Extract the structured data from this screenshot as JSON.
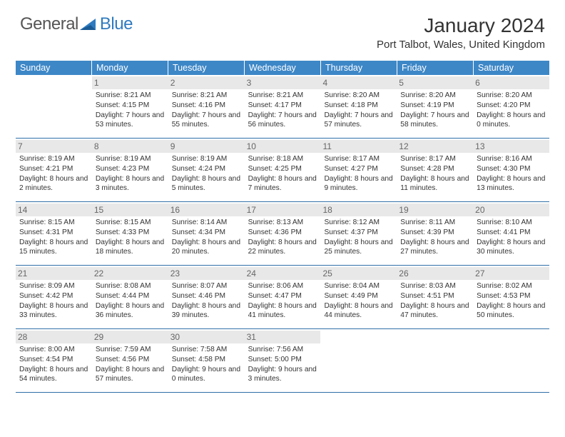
{
  "logo": {
    "text1": "General",
    "text2": "Blue",
    "color1": "#555555",
    "color2": "#2f7bbf"
  },
  "title": "January 2024",
  "location": "Port Talbot, Wales, United Kingdom",
  "header_bg": "#3d87c7",
  "row_border": "#2f6fa8",
  "daynum_bg": "#e8e8e8",
  "weekdays": [
    "Sunday",
    "Monday",
    "Tuesday",
    "Wednesday",
    "Thursday",
    "Friday",
    "Saturday"
  ],
  "weeks": [
    [
      null,
      {
        "n": "1",
        "sr": "8:21 AM",
        "ss": "4:15 PM",
        "dl": "7 hours and 53 minutes."
      },
      {
        "n": "2",
        "sr": "8:21 AM",
        "ss": "4:16 PM",
        "dl": "7 hours and 55 minutes."
      },
      {
        "n": "3",
        "sr": "8:21 AM",
        "ss": "4:17 PM",
        "dl": "7 hours and 56 minutes."
      },
      {
        "n": "4",
        "sr": "8:20 AM",
        "ss": "4:18 PM",
        "dl": "7 hours and 57 minutes."
      },
      {
        "n": "5",
        "sr": "8:20 AM",
        "ss": "4:19 PM",
        "dl": "7 hours and 58 minutes."
      },
      {
        "n": "6",
        "sr": "8:20 AM",
        "ss": "4:20 PM",
        "dl": "8 hours and 0 minutes."
      }
    ],
    [
      {
        "n": "7",
        "sr": "8:19 AM",
        "ss": "4:21 PM",
        "dl": "8 hours and 2 minutes."
      },
      {
        "n": "8",
        "sr": "8:19 AM",
        "ss": "4:23 PM",
        "dl": "8 hours and 3 minutes."
      },
      {
        "n": "9",
        "sr": "8:19 AM",
        "ss": "4:24 PM",
        "dl": "8 hours and 5 minutes."
      },
      {
        "n": "10",
        "sr": "8:18 AM",
        "ss": "4:25 PM",
        "dl": "8 hours and 7 minutes."
      },
      {
        "n": "11",
        "sr": "8:17 AM",
        "ss": "4:27 PM",
        "dl": "8 hours and 9 minutes."
      },
      {
        "n": "12",
        "sr": "8:17 AM",
        "ss": "4:28 PM",
        "dl": "8 hours and 11 minutes."
      },
      {
        "n": "13",
        "sr": "8:16 AM",
        "ss": "4:30 PM",
        "dl": "8 hours and 13 minutes."
      }
    ],
    [
      {
        "n": "14",
        "sr": "8:15 AM",
        "ss": "4:31 PM",
        "dl": "8 hours and 15 minutes."
      },
      {
        "n": "15",
        "sr": "8:15 AM",
        "ss": "4:33 PM",
        "dl": "8 hours and 18 minutes."
      },
      {
        "n": "16",
        "sr": "8:14 AM",
        "ss": "4:34 PM",
        "dl": "8 hours and 20 minutes."
      },
      {
        "n": "17",
        "sr": "8:13 AM",
        "ss": "4:36 PM",
        "dl": "8 hours and 22 minutes."
      },
      {
        "n": "18",
        "sr": "8:12 AM",
        "ss": "4:37 PM",
        "dl": "8 hours and 25 minutes."
      },
      {
        "n": "19",
        "sr": "8:11 AM",
        "ss": "4:39 PM",
        "dl": "8 hours and 27 minutes."
      },
      {
        "n": "20",
        "sr": "8:10 AM",
        "ss": "4:41 PM",
        "dl": "8 hours and 30 minutes."
      }
    ],
    [
      {
        "n": "21",
        "sr": "8:09 AM",
        "ss": "4:42 PM",
        "dl": "8 hours and 33 minutes."
      },
      {
        "n": "22",
        "sr": "8:08 AM",
        "ss": "4:44 PM",
        "dl": "8 hours and 36 minutes."
      },
      {
        "n": "23",
        "sr": "8:07 AM",
        "ss": "4:46 PM",
        "dl": "8 hours and 39 minutes."
      },
      {
        "n": "24",
        "sr": "8:06 AM",
        "ss": "4:47 PM",
        "dl": "8 hours and 41 minutes."
      },
      {
        "n": "25",
        "sr": "8:04 AM",
        "ss": "4:49 PM",
        "dl": "8 hours and 44 minutes."
      },
      {
        "n": "26",
        "sr": "8:03 AM",
        "ss": "4:51 PM",
        "dl": "8 hours and 47 minutes."
      },
      {
        "n": "27",
        "sr": "8:02 AM",
        "ss": "4:53 PM",
        "dl": "8 hours and 50 minutes."
      }
    ],
    [
      {
        "n": "28",
        "sr": "8:00 AM",
        "ss": "4:54 PM",
        "dl": "8 hours and 54 minutes."
      },
      {
        "n": "29",
        "sr": "7:59 AM",
        "ss": "4:56 PM",
        "dl": "8 hours and 57 minutes."
      },
      {
        "n": "30",
        "sr": "7:58 AM",
        "ss": "4:58 PM",
        "dl": "9 hours and 0 minutes."
      },
      {
        "n": "31",
        "sr": "7:56 AM",
        "ss": "5:00 PM",
        "dl": "9 hours and 3 minutes."
      },
      null,
      null,
      null
    ]
  ],
  "labels": {
    "sunrise": "Sunrise:",
    "sunset": "Sunset:",
    "daylight": "Daylight:"
  }
}
